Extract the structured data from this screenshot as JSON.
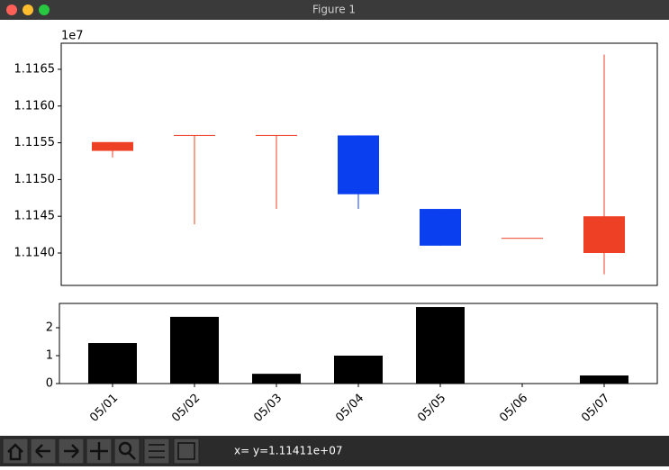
{
  "window": {
    "title": "Figure 1",
    "status": "x= y=1.11411e+07"
  },
  "chart_data": [
    {
      "type": "candlestick",
      "y_offset_label": "1e7",
      "up_color": "#ee4024",
      "down_color": "#0a3ff0",
      "open": [
        1.11539,
        1.1156,
        1.1156,
        1.1156,
        1.1146,
        1.1142,
        1.114
      ],
      "high": [
        1.11551,
        1.1156,
        1.1156,
        1.1156,
        1.1146,
        1.1142,
        1.1167
      ],
      "low": [
        1.1153,
        1.11439,
        1.1146,
        1.1146,
        1.1141,
        1.1142,
        1.11371
      ],
      "close": [
        1.11551,
        1.1156,
        1.1156,
        1.1148,
        1.1141,
        1.1142,
        1.1145
      ],
      "ylim": [
        1.113559,
        1.116855
      ],
      "yticks": [
        {
          "value": 1.114,
          "label": "1.1140"
        },
        {
          "value": 1.1145,
          "label": "1.1145"
        },
        {
          "value": 1.115,
          "label": "1.1150"
        },
        {
          "value": 1.1155,
          "label": "1.1155"
        },
        {
          "value": 1.116,
          "label": "1.1160"
        },
        {
          "value": 1.1165,
          "label": "1.1165"
        }
      ]
    },
    {
      "type": "bar",
      "color": "#000000",
      "categories": [
        "05/01",
        "05/02",
        "05/03",
        "05/04",
        "05/05",
        "05/06",
        "05/07"
      ],
      "values": [
        1.45,
        2.39,
        0.35,
        1.0,
        2.74,
        0,
        0.29
      ],
      "ylim": [
        0,
        2.87
      ],
      "yticks": [
        0,
        1,
        2
      ]
    }
  ]
}
